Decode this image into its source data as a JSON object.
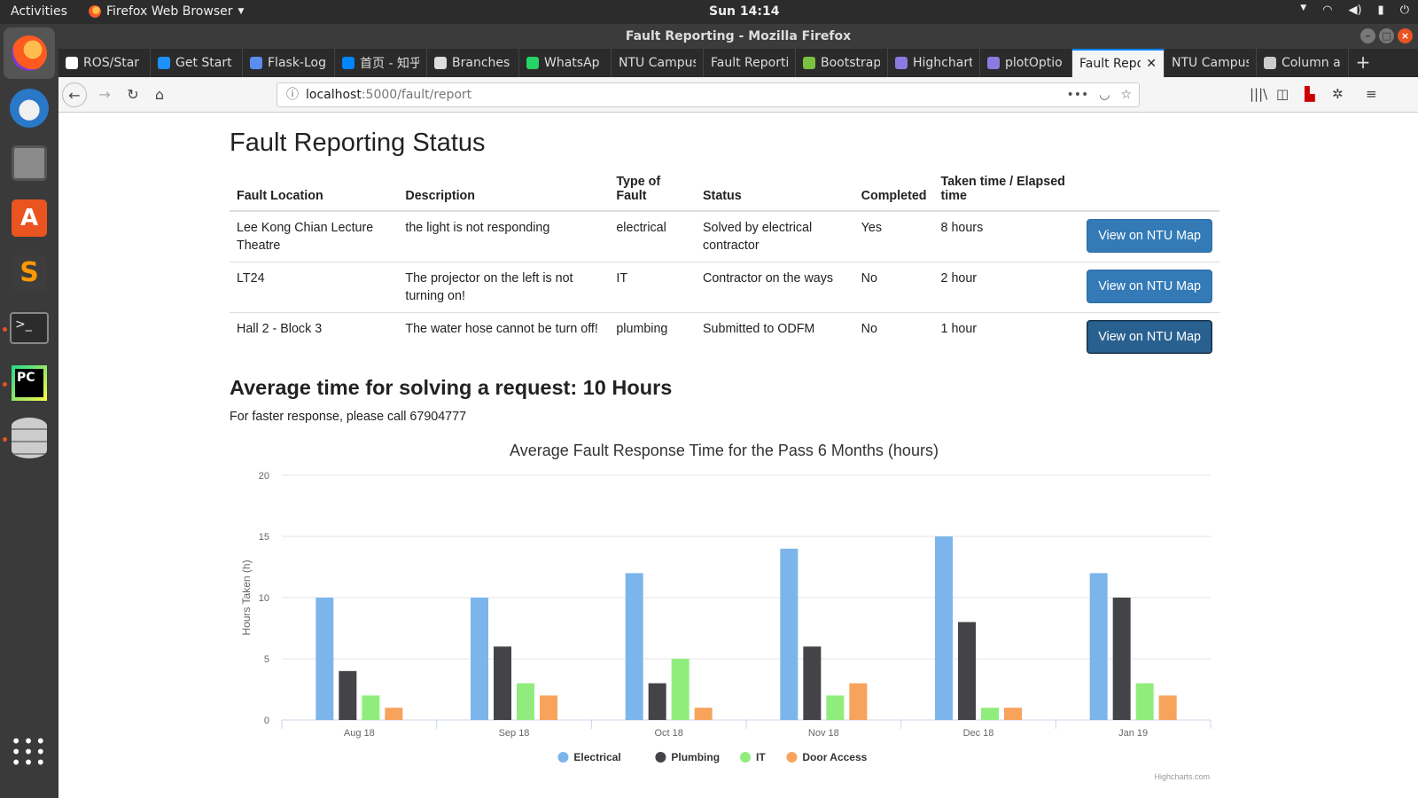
{
  "topbar": {
    "activities": "Activities",
    "app_menu": "Firefox Web Browser",
    "clock": "Sun 14:14"
  },
  "window": {
    "title": "Fault Reporting - Mozilla Firefox"
  },
  "tabs": [
    {
      "label": "ROS/Star",
      "icon": "grid-icon",
      "width": 104
    },
    {
      "label": "Get Start",
      "icon": "globe-icon",
      "width": 104
    },
    {
      "label": "Flask-Log",
      "icon": "book-icon",
      "width": 104
    },
    {
      "label": "首页 - 知乎",
      "icon": "zhihu-icon",
      "width": 104
    },
    {
      "label": "Branches",
      "icon": "github-icon",
      "width": 104
    },
    {
      "label": "WhatsAp",
      "icon": "whatsapp-icon",
      "width": 104
    },
    {
      "label": "NTU Campus",
      "icon": "",
      "width": 104
    },
    {
      "label": "Fault Reporti",
      "icon": "",
      "width": 104
    },
    {
      "label": "Bootstrap",
      "icon": "bootstrap-icon",
      "width": 104
    },
    {
      "label": "Highchart",
      "icon": "highcharts-icon",
      "width": 104
    },
    {
      "label": "plotOptio",
      "icon": "highcharts-icon",
      "width": 104
    },
    {
      "label": "Fault Repo",
      "icon": "",
      "width": 104,
      "active": true
    },
    {
      "label": "NTU Campus",
      "icon": "",
      "width": 104
    },
    {
      "label": "Column a",
      "icon": "circle-icon",
      "width": 104
    }
  ],
  "url": {
    "host": "localhost",
    "path": ":5000/fault/report"
  },
  "page": {
    "title": "Fault Reporting Status",
    "table": {
      "headers": [
        "Fault Location",
        "Description",
        "Type of Fault",
        "Status",
        "Completed",
        "Taken time / Elapsed time"
      ],
      "rows": [
        {
          "location": "Lee Kong Chian Lecture Theatre",
          "description": "the light is not responding",
          "type": "electrical",
          "status": "Solved by electrical contractor",
          "completed": "Yes",
          "time": "8 hours",
          "button": "View on NTU Map"
        },
        {
          "location": "LT24",
          "description": "The projector on the left is not turning on!",
          "type": "IT",
          "status": "Contractor on the ways",
          "completed": "No",
          "time": "2 hour",
          "button": "View on NTU Map"
        },
        {
          "location": "Hall 2 - Block 3",
          "description": "The water hose cannot be turn off!",
          "type": "plumbing",
          "status": "Submitted to ODFM",
          "completed": "No",
          "time": "1 hour",
          "button": "View on NTU Map"
        }
      ]
    },
    "avg_heading": "Average time for solving a request: 10 Hours",
    "call_note": "For faster response, please call 67904777"
  },
  "chart_data": {
    "type": "bar",
    "title": "Average Fault Response Time for the Pass 6 Months (hours)",
    "xlabel": "",
    "ylabel": "Hours Taken (h)",
    "categories": [
      "Aug 18",
      "Sep 18",
      "Oct 18",
      "Nov 18",
      "Dec 18",
      "Jan 19"
    ],
    "ylim": [
      0,
      20
    ],
    "yticks": [
      0,
      5,
      10,
      15,
      20
    ],
    "series": [
      {
        "name": "Electrical",
        "color": "#7cb5ec",
        "values": [
          10,
          10,
          12,
          14,
          15,
          12
        ]
      },
      {
        "name": "Plumbing",
        "color": "#434348",
        "values": [
          4,
          6,
          3,
          6,
          8,
          10
        ]
      },
      {
        "name": "IT",
        "color": "#90ed7d",
        "values": [
          2,
          3,
          5,
          2,
          1,
          3
        ]
      },
      {
        "name": "Door Access",
        "color": "#f7a35c",
        "values": [
          1,
          2,
          1,
          3,
          1,
          2
        ]
      }
    ],
    "legend": "bottom-center",
    "grid": true,
    "credits": "Highcharts.com"
  }
}
